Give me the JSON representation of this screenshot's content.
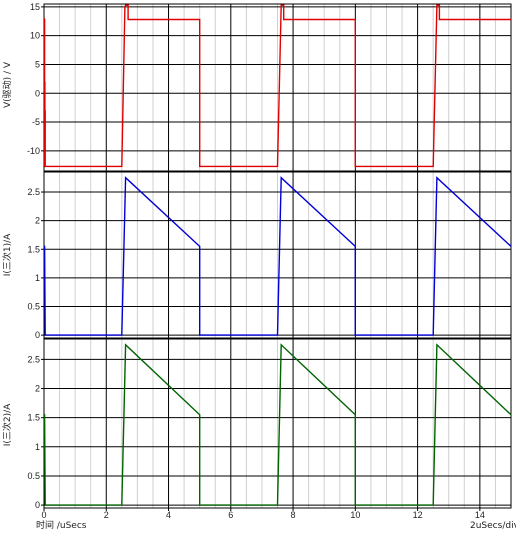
{
  "chart_data": [
    {
      "type": "line",
      "ylabel": "V(驱动) / V",
      "ylim": [
        -13.5,
        15.5
      ],
      "yticks": [
        -10,
        -5,
        0,
        5,
        10,
        15
      ],
      "xlim": [
        0,
        15
      ],
      "series": [
        {
          "color": "#e00000",
          "x": [
            0.02,
            0.02,
            0.03,
            0.03,
            0.04,
            0.04,
            0.05,
            2.5,
            2.6,
            2.62,
            2.7,
            2.7,
            5.0,
            5.0,
            7.5,
            7.62,
            7.7,
            7.7,
            10.0,
            10.0,
            12.5,
            12.62,
            12.7,
            12.7,
            15.0
          ],
          "y": [
            13,
            -12.7,
            2,
            -12.5,
            -3,
            -12.7,
            -12.7,
            -12.7,
            15,
            15.3,
            15.3,
            12.8,
            12.8,
            -12.7,
            -12.7,
            15.3,
            15.3,
            12.8,
            12.8,
            -12.7,
            -12.7,
            15.3,
            15.3,
            12.8,
            12.8
          ]
        }
      ]
    },
    {
      "type": "line",
      "ylabel": "I(三次1)/A",
      "ylim": [
        -0.05,
        2.85
      ],
      "yticks": [
        0,
        0.5,
        1,
        1.5,
        2,
        2.5
      ],
      "xlim": [
        0,
        15
      ],
      "series": [
        {
          "color": "#0000d8",
          "x": [
            0.0,
            0.02,
            0.04,
            0.06,
            2.5,
            2.62,
            5.0,
            5.0,
            7.5,
            7.62,
            10.0,
            10.0,
            12.5,
            12.62,
            15.0
          ],
          "y": [
            1.55,
            1.55,
            0.0,
            0.0,
            0.0,
            2.75,
            1.55,
            0.0,
            0.0,
            2.75,
            1.55,
            0.0,
            0.0,
            2.75,
            1.55
          ]
        }
      ]
    },
    {
      "type": "line",
      "ylabel": "I(三次2)/A",
      "ylim": [
        -0.05,
        2.85
      ],
      "yticks": [
        0,
        0.5,
        1,
        1.5,
        2,
        2.5
      ],
      "xlim": [
        0,
        15
      ],
      "series": [
        {
          "color": "#006400",
          "x": [
            0.0,
            0.02,
            0.04,
            0.06,
            2.5,
            2.62,
            5.0,
            5.0,
            7.5,
            7.62,
            10.0,
            10.0,
            12.5,
            12.62,
            15.0
          ],
          "y": [
            1.55,
            1.55,
            0.0,
            0.0,
            0.0,
            2.75,
            1.55,
            0.0,
            0.0,
            2.75,
            1.55,
            0.0,
            0.0,
            2.75,
            1.55
          ]
        }
      ]
    }
  ],
  "x_axis": {
    "ticks": [
      0,
      2,
      4,
      6,
      8,
      10,
      12,
      14
    ],
    "label": "时间 /uSecs",
    "scale_label": "2uSecs/div"
  },
  "colors": {
    "major_grid": "#000000",
    "minor_grid": "#d0d0d0",
    "panel_border": "#000000"
  }
}
